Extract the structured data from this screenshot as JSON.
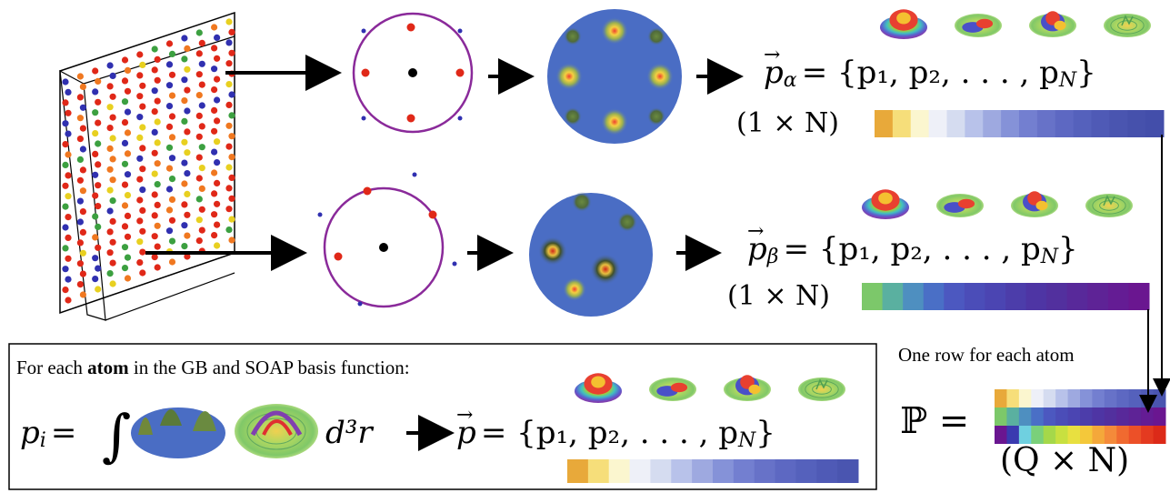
{
  "formulas": {
    "p_alpha": "p⃗α = {p1, p2, . . . , pN}",
    "p_alpha_lhs": "p",
    "p_alpha_sub": "α",
    "p_alpha_set": "= {p₁, p₂, . . . , p",
    "p_alpha_set_end": "N",
    "p_alpha_close": "}",
    "p_alpha_dims": "(1 × N)",
    "p_beta_lhs": "p",
    "p_beta_sub": "β",
    "p_beta_set": "= {p₁, p₂, . . . , p",
    "p_beta_set_end": "N",
    "p_beta_close": "}",
    "p_beta_dims": "(1 × N)",
    "integral_lhs": "p",
    "integral_lhs_sub": "i",
    "integral_eq": "=",
    "integral_d3r": "d³r",
    "p_vec_lhs": "p",
    "p_vec_set": "= {p₁, p₂, . . . , p",
    "p_vec_set_end": "N",
    "p_vec_close": "}",
    "matrix_symbol": "ℙ =",
    "matrix_dims": "(Q × N)"
  },
  "captions": {
    "box_title_pre": "For each ",
    "box_title_bold": "atom",
    "box_title_post": " in the GB and SOAP basis function:",
    "one_row": "One row for each atom"
  },
  "colors": {
    "bar_alpha": [
      "#e8a93a",
      "#f6de7a",
      "#fbf6cf",
      "#eef0f8",
      "#d5dcf0",
      "#b8c2ea",
      "#9ea9e0",
      "#8592d8",
      "#737fd0",
      "#6772c8",
      "#5d68c2",
      "#5561bc",
      "#4f5ab6",
      "#4a55b0",
      "#4651ac",
      "#434eaa"
    ],
    "bar_beta": [
      "#7cc86a",
      "#5ab0a0",
      "#4e8fc0",
      "#4a6fc6",
      "#4c58c0",
      "#4b4db8",
      "#4b45b2",
      "#4c3daa",
      "#4e35a4",
      "#52309e",
      "#58299a",
      "#5e2396",
      "#641c94",
      "#6a1690"
    ],
    "bar_vec": [
      "#e8a93a",
      "#f6de7a",
      "#fbf6cf",
      "#eef0f8",
      "#d5dcf0",
      "#b8c2ea",
      "#9ea9e0",
      "#8592d8",
      "#737fd0",
      "#6772c8",
      "#5d68c2",
      "#5561bc",
      "#4f5ab6",
      "#4a55b0"
    ],
    "matrix_row1": [
      "#e8a93a",
      "#f6de7a",
      "#fbf6cf",
      "#eef0f8",
      "#d5dcf0",
      "#b8c2ea",
      "#9ea9e0",
      "#8592d8",
      "#737fd0",
      "#6772c8",
      "#5d68c2",
      "#5561bc",
      "#4f5ab6",
      "#4a55b0"
    ],
    "matrix_row2": [
      "#7cc86a",
      "#5ab0a0",
      "#4e8fc0",
      "#4a6fc6",
      "#4c58c0",
      "#4b4db8",
      "#4b45b2",
      "#4c3daa",
      "#4e35a4",
      "#52309e",
      "#58299a",
      "#5e2396",
      "#641c94",
      "#6a1690"
    ],
    "matrix_row3": [
      "#6a1690",
      "#3a3ab0",
      "#6fd0e0",
      "#7ad07a",
      "#a5d84a",
      "#c8e040",
      "#e8e040",
      "#f4c83a",
      "#f4a83a",
      "#f48a3a",
      "#f06a30",
      "#ec5028",
      "#e43a20",
      "#dc2a18"
    ]
  }
}
